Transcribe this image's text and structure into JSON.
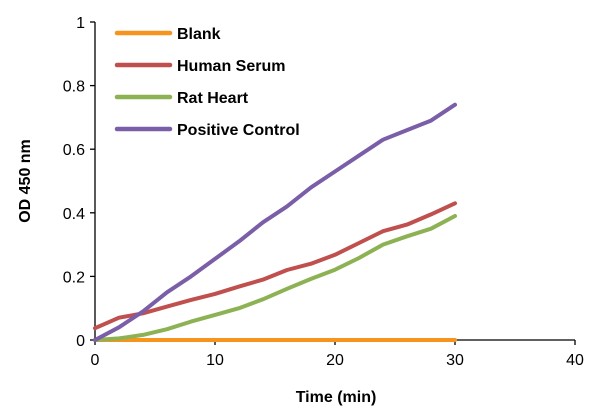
{
  "chart_data": {
    "type": "line",
    "title": "",
    "xlabel": "Time (min)",
    "ylabel": "OD 450 nm",
    "xlim": [
      0,
      40
    ],
    "ylim": [
      0,
      1
    ],
    "xticks": [
      "0",
      "10",
      "20",
      "30",
      "40"
    ],
    "yticks": [
      "0",
      "0.2",
      "0.4",
      "0.6",
      "0.8",
      "1"
    ],
    "grid": false,
    "legend_position": "top-left",
    "x": [
      0,
      2,
      4,
      6,
      8,
      10,
      12,
      14,
      16,
      18,
      20,
      22,
      24,
      26,
      28,
      30
    ],
    "series": [
      {
        "name": "Blank",
        "color": "#f7941d",
        "values": [
          0,
          0,
          0,
          0,
          0,
          0,
          0,
          0,
          0,
          0,
          0,
          0,
          0,
          0,
          0,
          0
        ]
      },
      {
        "name": "Human Serum",
        "color": "#c0504d",
        "values": [
          0.037,
          0.07,
          0.084,
          0.105,
          0.126,
          0.145,
          0.168,
          0.19,
          0.22,
          0.24,
          0.268,
          0.305,
          0.342,
          0.363,
          0.395,
          0.43
        ]
      },
      {
        "name": "Rat Heart",
        "color": "#8db254",
        "values": [
          0,
          0.005,
          0.016,
          0.034,
          0.058,
          0.079,
          0.1,
          0.128,
          0.161,
          0.192,
          0.221,
          0.258,
          0.3,
          0.326,
          0.35,
          0.39
        ]
      },
      {
        "name": "Positive Control",
        "color": "#7a5ea8",
        "values": [
          0,
          0.04,
          0.09,
          0.15,
          0.2,
          0.255,
          0.31,
          0.37,
          0.42,
          0.48,
          0.53,
          0.58,
          0.63,
          0.66,
          0.69,
          0.74
        ]
      }
    ]
  }
}
